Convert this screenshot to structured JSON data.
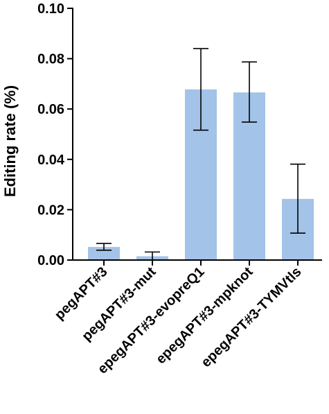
{
  "chart_data": {
    "type": "bar",
    "ylabel": "Editing rate (%)",
    "ylim": [
      0,
      0.1
    ],
    "yticks": [
      "0.00",
      "0.02",
      "0.04",
      "0.06",
      "0.08",
      "0.10"
    ],
    "ytick_values": [
      0,
      0.02,
      0.04,
      0.06,
      0.08,
      0.1
    ],
    "categories": [
      "pegAPT#3",
      "pegAPT#3-mut",
      "epegAPT#3-evopreQ1",
      "epegAPT#3-mpknot",
      "epegAPT#3-TYMVtls"
    ],
    "values": [
      0.0052,
      0.0015,
      0.0678,
      0.0666,
      0.0243
    ],
    "error_low": [
      0.0039,
      0.0,
      0.0516,
      0.0548,
      0.0107
    ],
    "error_high": [
      0.0066,
      0.0032,
      0.084,
      0.0787,
      0.0381
    ],
    "bar_color": "#a3c3e8",
    "axis_color": "#000000"
  }
}
